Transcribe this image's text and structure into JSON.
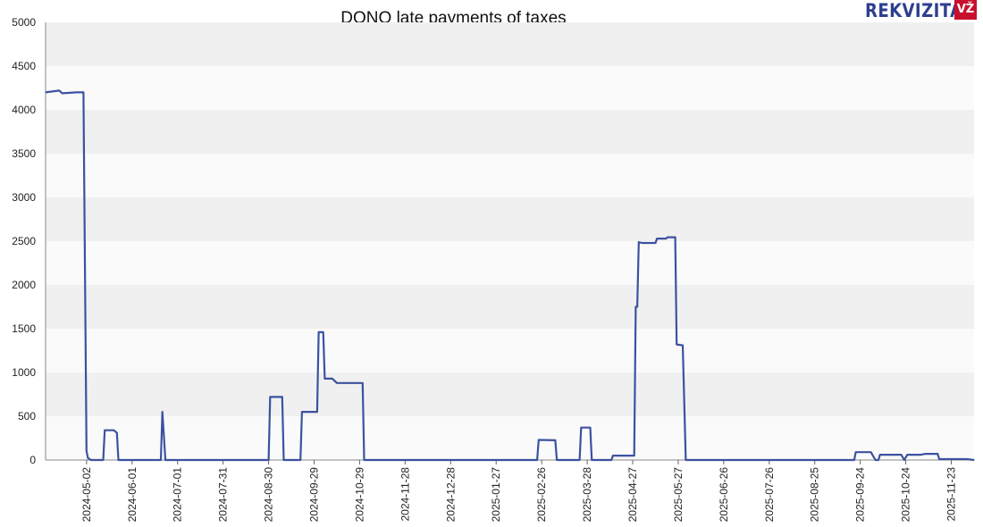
{
  "chart_data": {
    "type": "line",
    "title": "DONO late payments of taxes",
    "xlabel": "",
    "ylabel": "",
    "ylim": [
      0,
      5000
    ],
    "yticks": [
      0,
      500,
      1000,
      1500,
      2000,
      2500,
      3000,
      3500,
      4000,
      4500,
      5000
    ],
    "xlim": [
      "2024-04-05",
      "2025-12-08"
    ],
    "xticks": [
      "2024-05-02",
      "2024-06-01",
      "2024-07-01",
      "2024-07-31",
      "2024-08-30",
      "2024-09-29",
      "2024-10-29",
      "2024-11-28",
      "2024-12-28",
      "2025-01-27",
      "2025-02-26",
      "2025-03-28",
      "2025-04-27",
      "2025-05-27",
      "2025-06-26",
      "2025-07-26",
      "2025-08-25",
      "2025-09-24",
      "2025-10-24",
      "2025-11-23"
    ],
    "grid": "horizontal alternating bands",
    "line_color": "#3c52a0",
    "band_colors": [
      "#f0f0f0",
      "#fafafa"
    ],
    "series": [
      {
        "name": "",
        "points": [
          [
            "2024-04-05",
            4200
          ],
          [
            "2024-04-14",
            4220
          ],
          [
            "2024-04-16",
            4190
          ],
          [
            "2024-04-21",
            4195
          ],
          [
            "2024-04-25",
            4200
          ],
          [
            "2024-04-30",
            4200
          ],
          [
            "2024-05-02",
            100
          ],
          [
            "2024-05-03",
            20
          ],
          [
            "2024-05-05",
            0
          ],
          [
            "2024-05-13",
            0
          ],
          [
            "2024-05-14",
            340
          ],
          [
            "2024-05-20",
            340
          ],
          [
            "2024-05-22",
            310
          ],
          [
            "2024-05-23",
            0
          ],
          [
            "2024-06-20",
            0
          ],
          [
            "2024-06-21",
            550
          ],
          [
            "2024-06-23",
            0
          ],
          [
            "2024-08-30",
            0
          ],
          [
            "2024-08-31",
            720
          ],
          [
            "2024-09-08",
            720
          ],
          [
            "2024-09-09",
            0
          ],
          [
            "2024-09-20",
            0
          ],
          [
            "2024-09-21",
            550
          ],
          [
            "2024-10-01",
            550
          ],
          [
            "2024-10-02",
            1460
          ],
          [
            "2024-10-05",
            1460
          ],
          [
            "2024-10-06",
            930
          ],
          [
            "2024-10-11",
            930
          ],
          [
            "2024-10-14",
            880
          ],
          [
            "2024-10-31",
            880
          ],
          [
            "2024-11-01",
            0
          ],
          [
            "2025-02-23",
            0
          ],
          [
            "2025-02-24",
            230
          ],
          [
            "2025-03-07",
            225
          ],
          [
            "2025-03-08",
            0
          ],
          [
            "2025-03-23",
            0
          ],
          [
            "2025-03-24",
            370
          ],
          [
            "2025-03-30",
            370
          ],
          [
            "2025-03-31",
            0
          ],
          [
            "2025-04-13",
            0
          ],
          [
            "2025-04-14",
            50
          ],
          [
            "2025-04-28",
            50
          ],
          [
            "2025-04-29",
            1750
          ],
          [
            "2025-04-30",
            1750
          ],
          [
            "2025-05-01",
            2490
          ],
          [
            "2025-05-03",
            2480
          ],
          [
            "2025-05-12",
            2480
          ],
          [
            "2025-05-13",
            2530
          ],
          [
            "2025-05-19",
            2530
          ],
          [
            "2025-05-20",
            2545
          ],
          [
            "2025-05-25",
            2545
          ],
          [
            "2025-05-26",
            1320
          ],
          [
            "2025-05-30",
            1310
          ],
          [
            "2025-06-01",
            0
          ],
          [
            "2025-09-20",
            0
          ],
          [
            "2025-09-21",
            90
          ],
          [
            "2025-10-01",
            90
          ],
          [
            "2025-10-04",
            0
          ],
          [
            "2025-10-06",
            0
          ],
          [
            "2025-10-07",
            60
          ],
          [
            "2025-10-21",
            60
          ],
          [
            "2025-10-23",
            0
          ],
          [
            "2025-10-25",
            60
          ],
          [
            "2025-11-03",
            60
          ],
          [
            "2025-11-06",
            70
          ],
          [
            "2025-11-14",
            70
          ],
          [
            "2025-11-15",
            10
          ],
          [
            "2025-12-03",
            10
          ],
          [
            "2025-12-08",
            0
          ]
        ]
      }
    ]
  },
  "logo": {
    "text": "REKVIZITAI",
    "badge": "VŽ"
  }
}
